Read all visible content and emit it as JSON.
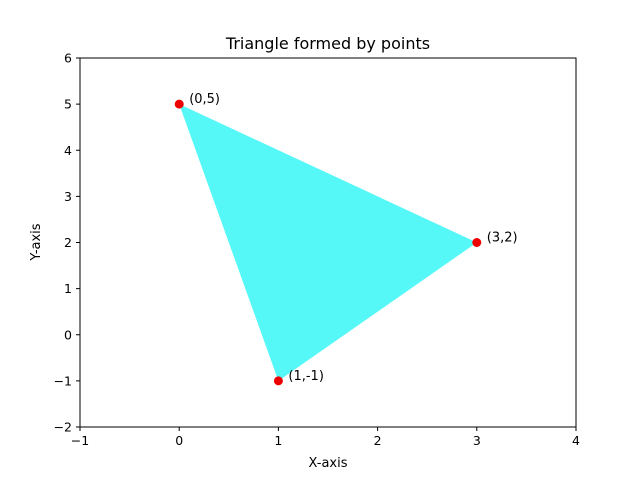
{
  "chart_data": {
    "type": "scatter",
    "title": "Triangle formed by points",
    "xlabel": "X-axis",
    "ylabel": "Y-axis",
    "xlim": [
      -1,
      4
    ],
    "ylim": [
      -2,
      6
    ],
    "xticks": [
      -1,
      0,
      1,
      2,
      3,
      4
    ],
    "yticks": [
      -2,
      -1,
      0,
      1,
      2,
      3,
      4,
      5,
      6
    ],
    "xtick_labels": [
      "−1",
      "0",
      "1",
      "2",
      "3",
      "4"
    ],
    "ytick_labels": [
      "−2",
      "−1",
      "0",
      "1",
      "2",
      "3",
      "4",
      "5",
      "6"
    ],
    "grid": false,
    "points": [
      {
        "x": 0,
        "y": 5,
        "label": "(0,5)"
      },
      {
        "x": 3,
        "y": 2,
        "label": "(3,2)"
      },
      {
        "x": 1,
        "y": -1,
        "label": "(1,-1)"
      }
    ],
    "fill_color": "#55f7f7",
    "marker_color": "#ee0000"
  }
}
